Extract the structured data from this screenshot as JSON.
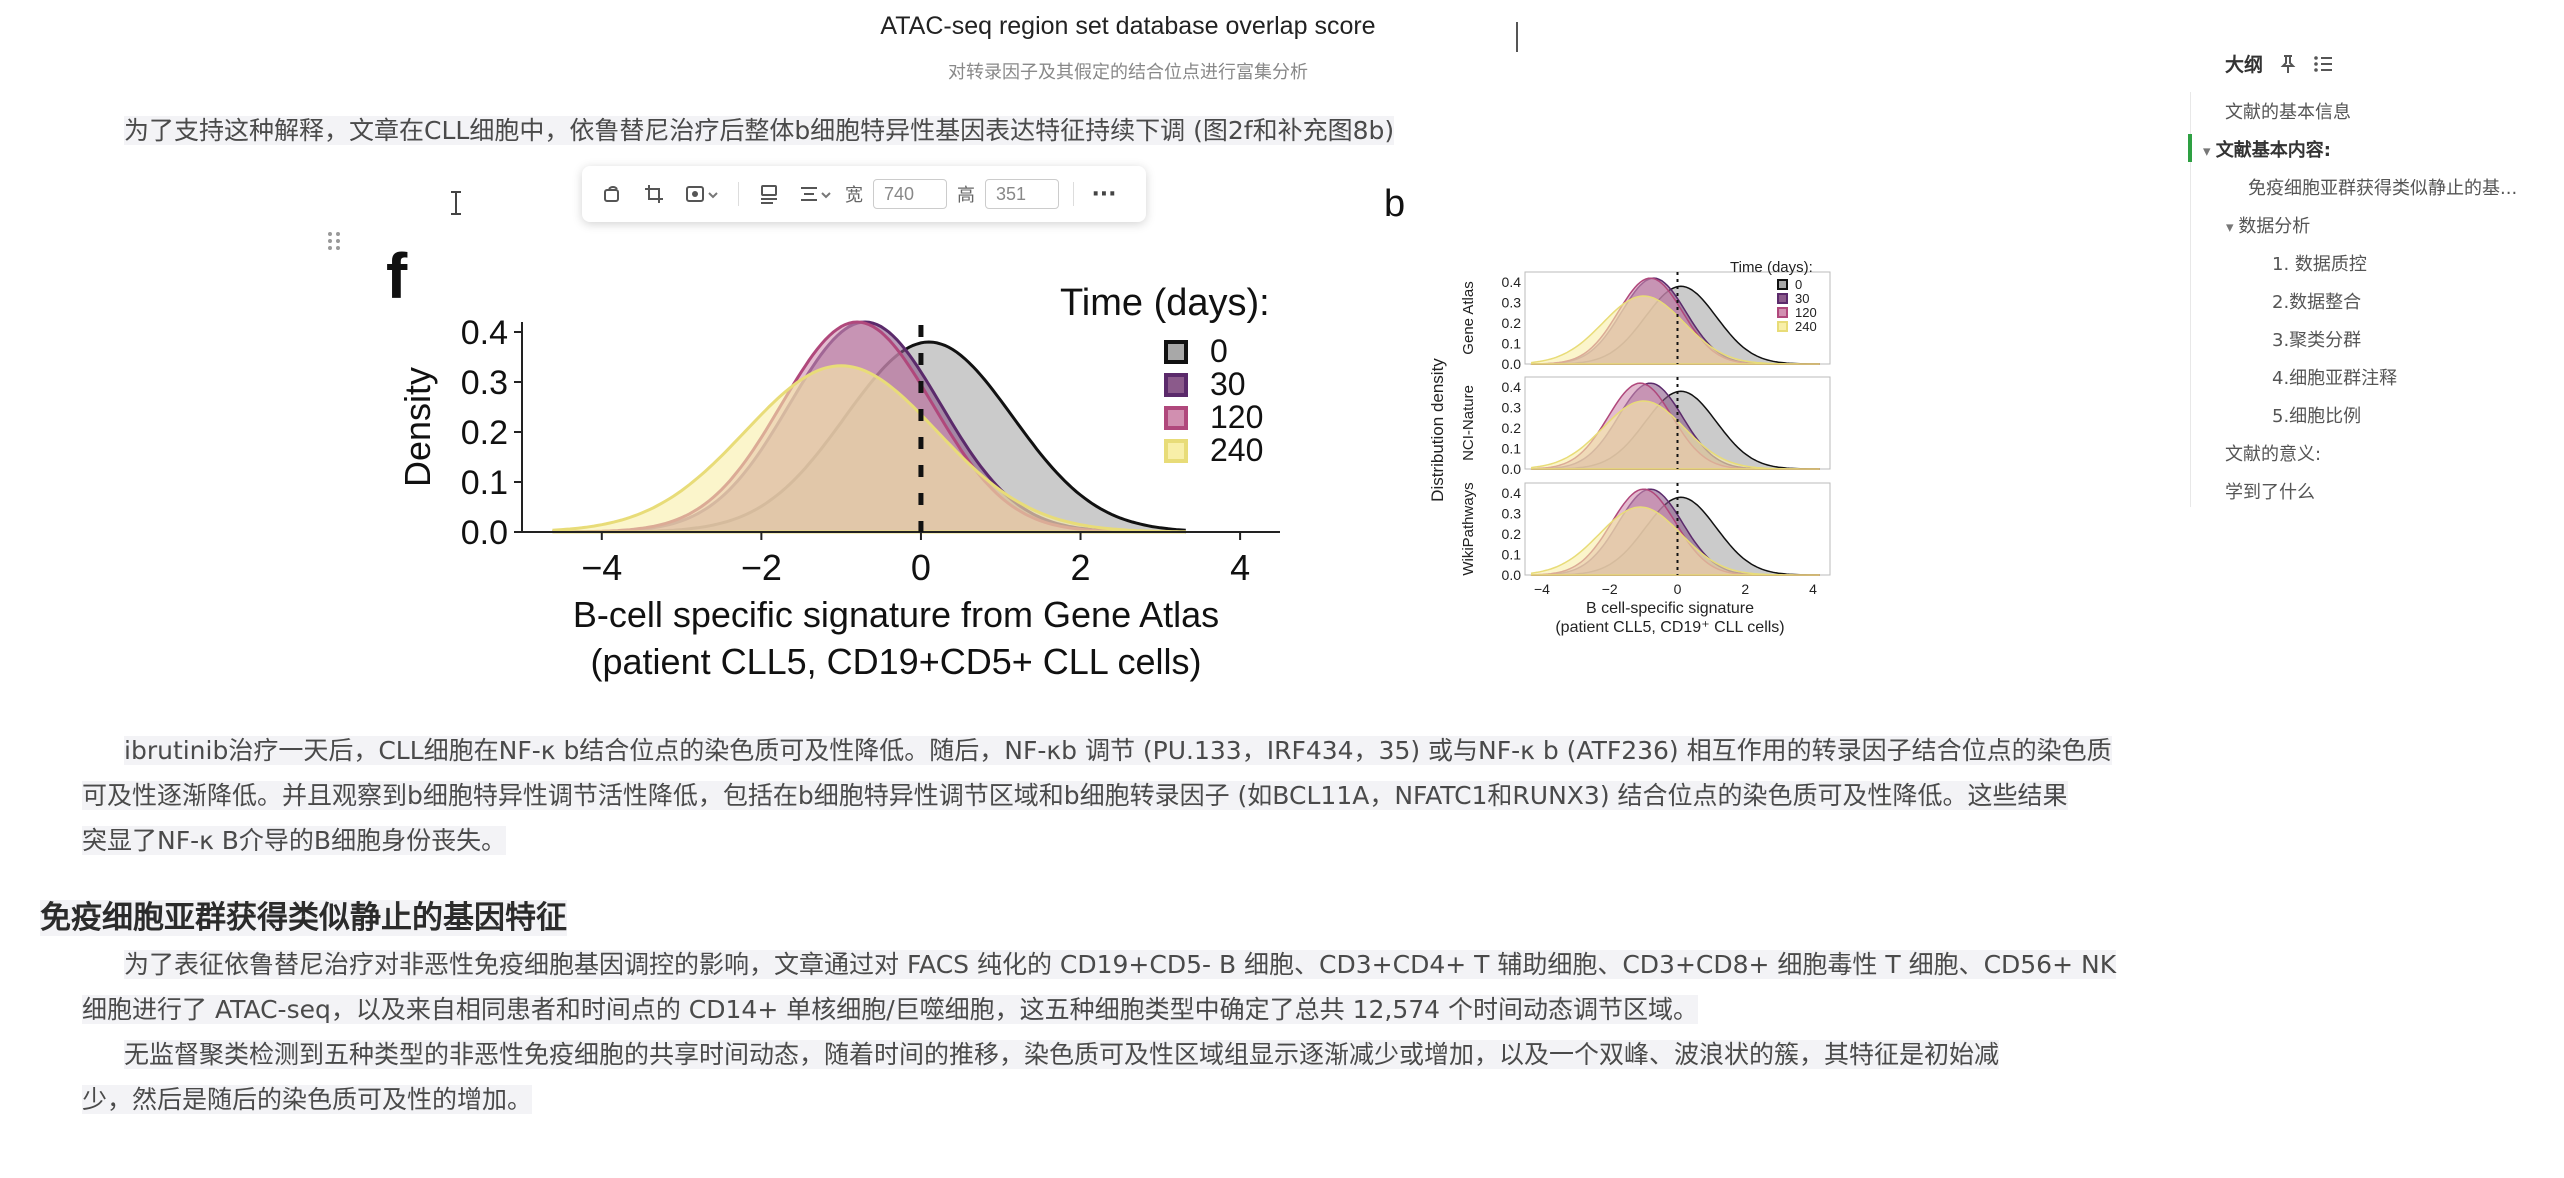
{
  "figure_caption": {
    "title": "ATAC-seq region set database overlap score",
    "subtitle": "对转录因子及其假定的结合位点进行富集分析"
  },
  "paragraphs": {
    "p1": "为了支持这种解释，文章在CLL细胞中，依鲁替尼治疗后整体b细胞特异性基因表达特征持续下调 (图2f和补充图8b)",
    "p2_l1": "ibrutinib治疗一天后，CLL细胞在NF-κ b结合位点的染色质可及性降低。随后，NF-κb 调节 (PU.133，IRF434，35) 或与NF-κ b (ATF236) 相互作用的转录因子结合位点的染色质",
    "p2_l2": "可及性逐渐降低。并且观察到b细胞特异性调节活性降低，包括在b细胞特异性调节区域和b细胞转录因子 (如BCL11A，NFATC1和RUNX3) 结合位点的染色质可及性降低。这些结果",
    "p2_l3": "突显了NF-κ B介导的B细胞身份丧失。",
    "heading": "免疫细胞亚群获得类似静止的基因特征",
    "p3_l1": "为了表征依鲁替尼治疗对非恶性免疫细胞基因调控的影响，文章通过对 FACS 纯化的 CD19+CD5- B 细胞、CD3+CD4+ T 辅助细胞、CD3+CD8+ 细胞毒性 T 细胞、CD56+ NK",
    "p3_l2": "细胞进行了 ATAC-seq，以及来自相同患者和时间点的 CD14+ 单核细胞/巨噬细胞，这五种细胞类型中确定了总共 12,574 个时间动态调节区域。",
    "p4_l1": "无监督聚类检测到五种类型的非恶性免疫细胞的共享时间动态，随着时间的推移，染色质可及性区域组显示逐渐减少或增加，以及一个双峰、波浪状的簇，其特征是初始减",
    "p4_l2": "少，然后是随后的染色质可及性的增加。"
  },
  "image_toolbar": {
    "width_label": "宽",
    "width_value": "740",
    "height_label": "高",
    "height_value": "351",
    "more_label": "···"
  },
  "outline": {
    "title": "大纲",
    "items": [
      {
        "label": "文献的基本信息",
        "level": 0
      },
      {
        "label": "文献基本内容:",
        "level": 0
      },
      {
        "label": "免疫细胞亚群获得类似静止的基...",
        "level": 1
      },
      {
        "label": "数据分析",
        "level": 1
      },
      {
        "label": "1. 数据质控",
        "level": 2
      },
      {
        "label": "2.数据整合",
        "level": 2
      },
      {
        "label": "3.聚类分群",
        "level": 2
      },
      {
        "label": "4.细胞亚群注释",
        "level": 2
      },
      {
        "label": "5.细胞比例",
        "level": 2
      },
      {
        "label": "文献的意义:",
        "level": 0
      },
      {
        "label": "学到了什么",
        "level": 0
      }
    ]
  },
  "chart_data": [
    {
      "panel": "f",
      "type": "area",
      "xlabel": "B-cell specific signature from Gene Atlas",
      "xlabel2": "(patient CLL5, CD19+CD5+ CLL cells)",
      "ylabel": "Density",
      "xlim": [
        -5,
        4.5
      ],
      "ylim": [
        0,
        0.42
      ],
      "xticks": [
        "−4",
        "−2",
        "0",
        "2",
        "4"
      ],
      "yticks": [
        "0.0",
        "0.1",
        "0.2",
        "0.3",
        "0.4"
      ],
      "legend_title": "Time (days):",
      "legend_position": "top-right",
      "vline_x": 0,
      "series": [
        {
          "name": "0",
          "fill": "#a8a8a8",
          "stroke": "#111111",
          "mean": 0.1,
          "sd": 1.05
        },
        {
          "name": "30",
          "fill": "#8b5a8b",
          "stroke": "#5b2a6b",
          "mean": -0.7,
          "sd": 0.95
        },
        {
          "name": "120",
          "fill": "#d18fb0",
          "stroke": "#b0487c",
          "mean": -0.8,
          "sd": 0.95
        },
        {
          "name": "240",
          "fill": "#f8efa8",
          "stroke": "#e8dc78",
          "mean": -1.0,
          "sd": 1.2
        }
      ]
    },
    {
      "panel": "b",
      "type": "area",
      "ylabel": "Distribution density",
      "xlabel": "B cell-specific signature",
      "xlabel2": "(patient CLL5, CD19⁺ CLL cells)",
      "xticks": [
        "−4",
        "−2",
        "0",
        "2",
        "4"
      ],
      "yticks": [
        "0.0",
        "0.1",
        "0.2",
        "0.3",
        "0.4"
      ],
      "legend_title": "Time (days):",
      "legend": [
        "0",
        "30",
        "120",
        "240"
      ],
      "facets": [
        "Gene Atlas",
        "NCI-Nature",
        "WikiPathways"
      ]
    }
  ]
}
